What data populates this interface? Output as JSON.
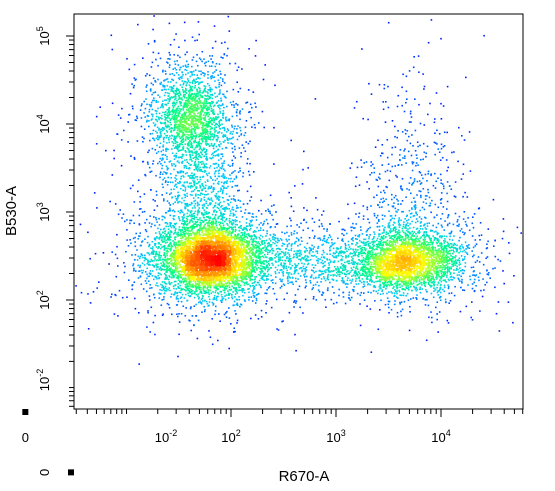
{
  "chart_data": {
    "type": "scatter",
    "subtype": "flow-cytometry density dot plot",
    "xlabel": "R670-A",
    "ylabel": "B530-A",
    "x_scale": "logicle (biexponential)",
    "y_scale": "logicle (biexponential)",
    "x_ticks": [
      {
        "value": -0.01,
        "base": "10",
        "exp": "-2"
      },
      {
        "value": 0,
        "base": "0",
        "exp": ""
      },
      {
        "value": 100,
        "base": "10",
        "exp": "2"
      },
      {
        "value": 1000,
        "base": "10",
        "exp": "3"
      },
      {
        "value": 10000,
        "base": "10",
        "exp": "4"
      }
    ],
    "y_ticks": [
      {
        "value": -0.01,
        "base": "10",
        "exp": "-2"
      },
      {
        "value": 0,
        "base": "0",
        "exp": ""
      },
      {
        "value": 100,
        "base": "10",
        "exp": "2"
      },
      {
        "value": 1000,
        "base": "10",
        "exp": "3"
      },
      {
        "value": 10000,
        "base": "10",
        "exp": "4"
      },
      {
        "value": 100000,
        "base": "10",
        "exp": "5"
      }
    ],
    "populations": [
      {
        "center": [
          60,
          290
        ],
        "density": "highest",
        "peak_color": "#e00000"
      },
      {
        "center": [
          5000,
          270
        ],
        "density": "high",
        "peak_color": "#ff8a00"
      },
      {
        "center": [
          40,
          15000
        ],
        "density": "medium",
        "peak_color": "#30e0a0"
      }
    ],
    "colormap": [
      "#0000ff",
      "#00c8ff",
      "#00ff80",
      "#ffff00",
      "#ff8000",
      "#ff0000"
    ],
    "grid": false,
    "legend": "none"
  }
}
